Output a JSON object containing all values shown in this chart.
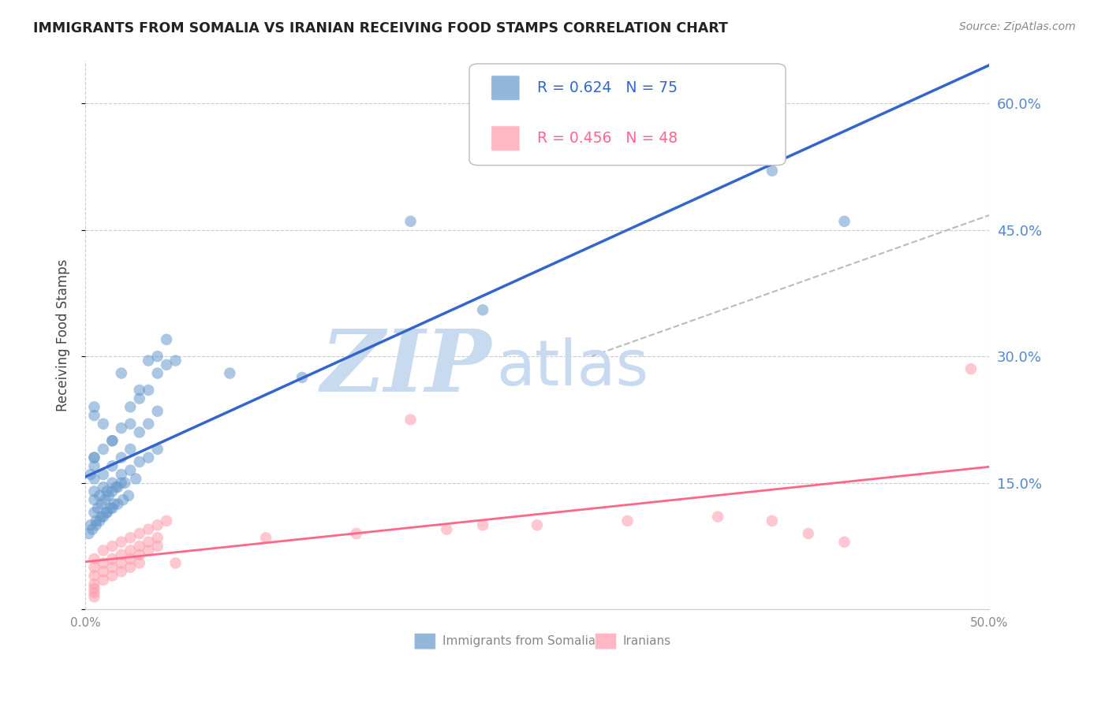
{
  "title": "IMMIGRANTS FROM SOMALIA VS IRANIAN RECEIVING FOOD STAMPS CORRELATION CHART",
  "source": "Source: ZipAtlas.com",
  "ylabel": "Receiving Food Stamps",
  "xlim": [
    0.0,
    0.5
  ],
  "ylim": [
    0.0,
    0.65
  ],
  "right_yticks": [
    0.6,
    0.45,
    0.3,
    0.15
  ],
  "right_ytick_labels": [
    "60.0%",
    "45.0%",
    "30.0%",
    "15.0%"
  ],
  "grid_color": "#cccccc",
  "background_color": "#ffffff",
  "somalia_color": "#6699cc",
  "iran_color": "#ff99aa",
  "somalia_line_color": "#3366cc",
  "iran_line_color": "#ff6688",
  "trend_line_color": "#bbbbbb",
  "legend_somalia_label": "R = 0.624   N = 75",
  "legend_iran_label": "R = 0.456   N = 48",
  "bottom_legend_somalia": "Immigrants from Somalia",
  "bottom_legend_iran": "Iranians",
  "somalia_scatter_x": [
    0.01,
    0.02,
    0.005,
    0.015,
    0.025,
    0.03,
    0.035,
    0.04,
    0.045,
    0.05,
    0.01,
    0.015,
    0.02,
    0.025,
    0.03,
    0.035,
    0.04,
    0.045,
    0.005,
    0.01,
    0.015,
    0.02,
    0.025,
    0.03,
    0.035,
    0.04,
    0.005,
    0.01,
    0.015,
    0.02,
    0.025,
    0.03,
    0.035,
    0.04,
    0.005,
    0.008,
    0.012,
    0.018,
    0.022,
    0.028,
    0.005,
    0.007,
    0.009,
    0.011,
    0.013,
    0.015,
    0.017,
    0.02,
    0.003,
    0.006,
    0.009,
    0.012,
    0.015,
    0.018,
    0.021,
    0.024,
    0.002,
    0.004,
    0.006,
    0.008,
    0.01,
    0.012,
    0.014,
    0.016,
    0.18,
    0.22,
    0.08,
    0.12,
    0.42,
    0.38,
    0.005,
    0.005,
    0.005,
    0.005,
    0.003
  ],
  "somalia_scatter_y": [
    0.22,
    0.28,
    0.18,
    0.2,
    0.24,
    0.26,
    0.295,
    0.3,
    0.32,
    0.295,
    0.19,
    0.2,
    0.215,
    0.22,
    0.25,
    0.26,
    0.28,
    0.29,
    0.155,
    0.16,
    0.17,
    0.18,
    0.19,
    0.21,
    0.22,
    0.235,
    0.14,
    0.145,
    0.15,
    0.16,
    0.165,
    0.175,
    0.18,
    0.19,
    0.13,
    0.135,
    0.14,
    0.145,
    0.15,
    0.155,
    0.115,
    0.12,
    0.125,
    0.13,
    0.135,
    0.14,
    0.145,
    0.15,
    0.1,
    0.105,
    0.11,
    0.115,
    0.12,
    0.125,
    0.13,
    0.135,
    0.09,
    0.095,
    0.1,
    0.105,
    0.11,
    0.115,
    0.12,
    0.125,
    0.46,
    0.355,
    0.28,
    0.275,
    0.46,
    0.52,
    0.23,
    0.24,
    0.17,
    0.18,
    0.16
  ],
  "iran_scatter_x": [
    0.005,
    0.01,
    0.015,
    0.02,
    0.025,
    0.03,
    0.035,
    0.04,
    0.045,
    0.05,
    0.005,
    0.01,
    0.015,
    0.02,
    0.025,
    0.03,
    0.035,
    0.04,
    0.005,
    0.01,
    0.015,
    0.02,
    0.025,
    0.03,
    0.035,
    0.04,
    0.1,
    0.15,
    0.2,
    0.25,
    0.3,
    0.35,
    0.4,
    0.005,
    0.01,
    0.015,
    0.02,
    0.025,
    0.03,
    0.38,
    0.42,
    0.18,
    0.22,
    0.005,
    0.005,
    0.005,
    0.49
  ],
  "iran_scatter_y": [
    0.06,
    0.07,
    0.075,
    0.08,
    0.085,
    0.09,
    0.095,
    0.1,
    0.105,
    0.055,
    0.05,
    0.055,
    0.06,
    0.065,
    0.07,
    0.075,
    0.08,
    0.085,
    0.04,
    0.045,
    0.05,
    0.055,
    0.06,
    0.065,
    0.07,
    0.075,
    0.085,
    0.09,
    0.095,
    0.1,
    0.105,
    0.11,
    0.09,
    0.03,
    0.035,
    0.04,
    0.045,
    0.05,
    0.055,
    0.105,
    0.08,
    0.225,
    0.1,
    0.02,
    0.015,
    0.025,
    0.285
  ],
  "watermark_zip": "ZIP",
  "watermark_atlas": "atlas",
  "watermark_color_zip": "#c8daf0",
  "watermark_color_atlas": "#c8daf0",
  "watermark_fontsize": 80
}
